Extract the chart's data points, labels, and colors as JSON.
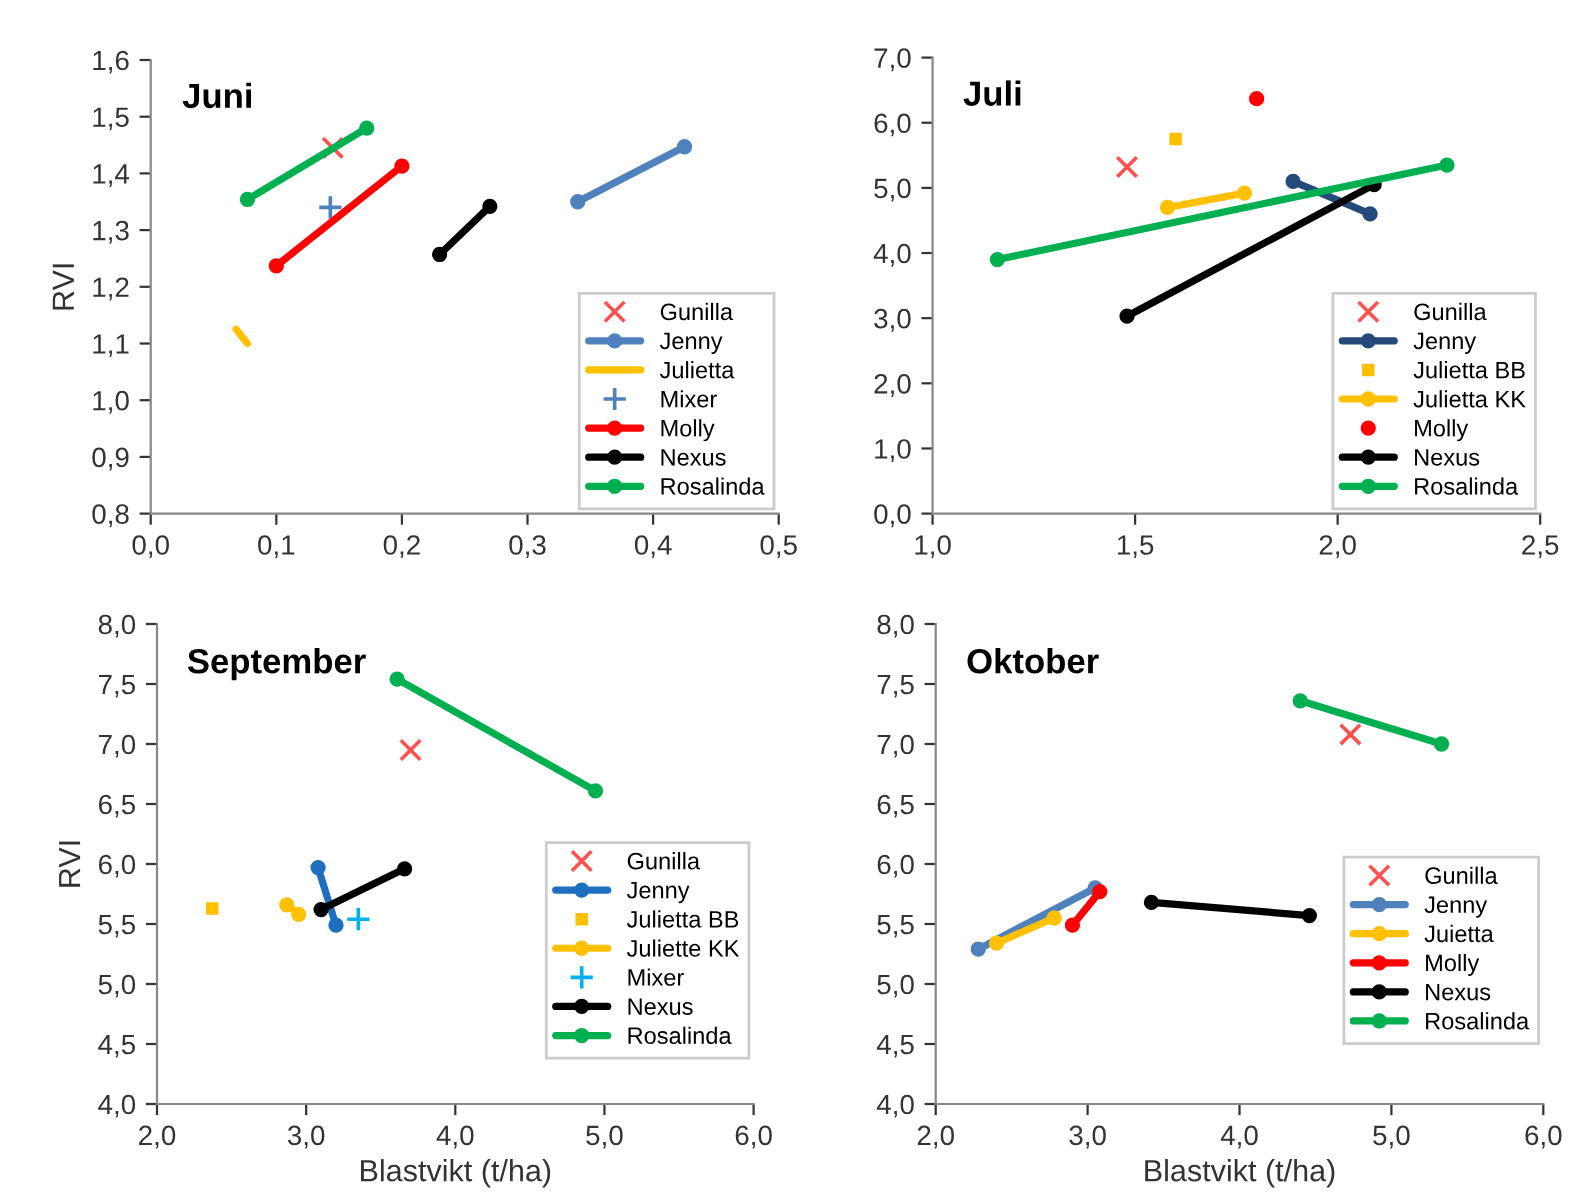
{
  "chart_data": [
    {
      "type": "line",
      "title": "Juni",
      "ylabel": "RVI",
      "xlim": [
        0,
        0.5
      ],
      "ylim": [
        0.8,
        1.6
      ],
      "xticks": [
        {
          "value": 0,
          "label": "0,0"
        },
        {
          "value": 0.1,
          "label": "0,1"
        },
        {
          "value": 0.2,
          "label": "0,2"
        },
        {
          "value": 0.3,
          "label": "0,3"
        },
        {
          "value": 0.4,
          "label": "0,4"
        },
        {
          "value": 0.5,
          "label": "0,5"
        }
      ],
      "yticks": [
        {
          "value": 0.8,
          "label": "0,8"
        },
        {
          "value": 0.9,
          "label": "0,9"
        },
        {
          "value": 1.0,
          "label": "1,0"
        },
        {
          "value": 1.1,
          "label": "1,1"
        },
        {
          "value": 1.2,
          "label": "1,2"
        },
        {
          "value": 1.3,
          "label": "1,3"
        },
        {
          "value": 1.4,
          "label": "1,4"
        },
        {
          "value": 1.5,
          "label": "1,5"
        },
        {
          "value": 1.6,
          "label": "1,6"
        }
      ],
      "grid": false,
      "legend": "bottom right",
      "series": [
        {
          "name": "Gunilla",
          "type": "scatter",
          "marker": "cross",
          "color": "#ff5050",
          "x": [
            0.145
          ],
          "values": [
            1.445
          ]
        },
        {
          "name": "Jenny",
          "marker": "circle",
          "color": "#4f81bd",
          "x": [
            0.34,
            0.425
          ],
          "values": [
            1.35,
            1.447
          ]
        },
        {
          "name": "Julietta",
          "marker": "none",
          "color": "#ffc000",
          "x": [
            0.068,
            0.077
          ],
          "values": [
            1.125,
            1.1
          ]
        },
        {
          "name": "Mixer",
          "type": "scatter",
          "marker": "plus",
          "color": "#4f81bd",
          "x": [
            0.143
          ],
          "values": [
            1.34
          ]
        },
        {
          "name": "Molly",
          "marker": "circle",
          "color": "#ff0000",
          "x": [
            0.1,
            0.2
          ],
          "values": [
            1.237,
            1.413
          ]
        },
        {
          "name": "Nexus",
          "marker": "circle",
          "color": "#000000",
          "x": [
            0.23,
            0.27
          ],
          "values": [
            1.257,
            1.342
          ]
        },
        {
          "name": "Rosalinda",
          "marker": "circle",
          "color": "#00b050",
          "x": [
            0.077,
            0.172
          ],
          "values": [
            1.354,
            1.48
          ]
        }
      ]
    },
    {
      "type": "line",
      "title": "Juli",
      "xlim": [
        1.0,
        2.5
      ],
      "ylim": [
        0,
        7
      ],
      "xticks": [
        {
          "value": 1.0,
          "label": "1,0"
        },
        {
          "value": 1.5,
          "label": "1,5"
        },
        {
          "value": 2.0,
          "label": "2,0"
        },
        {
          "value": 2.5,
          "label": "2,5"
        }
      ],
      "yticks": [
        {
          "value": 0,
          "label": "0,0"
        },
        {
          "value": 1,
          "label": "1,0"
        },
        {
          "value": 2,
          "label": "2,0"
        },
        {
          "value": 3,
          "label": "3,0"
        },
        {
          "value": 4,
          "label": "4,0"
        },
        {
          "value": 5,
          "label": "5,0"
        },
        {
          "value": 6,
          "label": "6,0"
        },
        {
          "value": 7,
          "label": "7,0"
        }
      ],
      "grid": false,
      "legend": "bottom right",
      "series": [
        {
          "name": "Gunilla",
          "type": "scatter",
          "marker": "cross",
          "color": "#ff5050",
          "x": [
            1.48
          ],
          "values": [
            5.32
          ]
        },
        {
          "name": "Jenny",
          "marker": "circle",
          "color": "#244a7c",
          "x": [
            1.89,
            2.08
          ],
          "values": [
            5.1,
            4.6
          ]
        },
        {
          "name": "Julietta BB",
          "type": "scatter",
          "marker": "square",
          "color": "#ffc000",
          "x": [
            1.6
          ],
          "values": [
            5.75
          ]
        },
        {
          "name": "Julietta KK",
          "marker": "circle",
          "color": "#ffc000",
          "x": [
            1.58,
            1.77
          ],
          "values": [
            4.7,
            4.92
          ]
        },
        {
          "name": "Molly",
          "type": "scatter",
          "marker": "circle",
          "color": "#ff0000",
          "x": [
            1.8
          ],
          "values": [
            6.37
          ]
        },
        {
          "name": "Nexus",
          "marker": "circle",
          "color": "#000000",
          "x": [
            1.48,
            2.09
          ],
          "values": [
            3.03,
            5.05
          ]
        },
        {
          "name": "Rosalinda",
          "marker": "circle",
          "color": "#00b050",
          "x": [
            1.16,
            2.27
          ],
          "values": [
            3.9,
            5.35
          ]
        }
      ]
    },
    {
      "type": "line",
      "title": "September",
      "xlabel": "Blastvikt (t/ha)",
      "ylabel": "RVI",
      "xlim": [
        2,
        6
      ],
      "ylim": [
        4,
        8
      ],
      "xticks": [
        {
          "value": 2,
          "label": "2,0"
        },
        {
          "value": 3,
          "label": "3,0"
        },
        {
          "value": 4,
          "label": "4,0"
        },
        {
          "value": 5,
          "label": "5,0"
        },
        {
          "value": 6,
          "label": "6,0"
        }
      ],
      "yticks": [
        {
          "value": 4,
          "label": "4,0"
        },
        {
          "value": 4.5,
          "label": "4,5"
        },
        {
          "value": 5,
          "label": "5,0"
        },
        {
          "value": 5.5,
          "label": "5,5"
        },
        {
          "value": 6,
          "label": "6,0"
        },
        {
          "value": 6.5,
          "label": "6,5"
        },
        {
          "value": 7,
          "label": "7,0"
        },
        {
          "value": 7.5,
          "label": "7,5"
        },
        {
          "value": 8,
          "label": "8,0"
        }
      ],
      "grid": false,
      "legend": "right",
      "series": [
        {
          "name": "Gunilla",
          "type": "scatter",
          "marker": "cross",
          "color": "#ff5050",
          "x": [
            3.7
          ],
          "values": [
            6.95
          ]
        },
        {
          "name": "Jenny",
          "marker": "circle",
          "color": "#1f6fbf",
          "x": [
            3.08,
            3.2
          ],
          "values": [
            5.97,
            5.49
          ]
        },
        {
          "name": "Julietta BB",
          "type": "scatter",
          "marker": "square",
          "color": "#ffc000",
          "x": [
            2.37
          ],
          "values": [
            5.63
          ]
        },
        {
          "name": "Juliette KK",
          "marker": "circle",
          "color": "#ffc000",
          "x": [
            2.87,
            2.95
          ],
          "values": [
            5.66,
            5.58
          ]
        },
        {
          "name": "Mixer",
          "type": "scatter",
          "marker": "plus",
          "color": "#00b0f0",
          "x": [
            3.35
          ],
          "values": [
            5.54
          ]
        },
        {
          "name": "Nexus",
          "marker": "circle",
          "color": "#000000",
          "x": [
            3.1,
            3.66
          ],
          "values": [
            5.62,
            5.96
          ]
        },
        {
          "name": "Rosalinda",
          "marker": "circle",
          "color": "#00b050",
          "x": [
            3.61,
            4.94
          ],
          "values": [
            7.54,
            6.61
          ]
        }
      ]
    },
    {
      "type": "line",
      "title": "Oktober",
      "xlabel": "Blastvikt (t/ha)",
      "xlim": [
        2,
        6
      ],
      "ylim": [
        4,
        8
      ],
      "xticks": [
        {
          "value": 2,
          "label": "2,0"
        },
        {
          "value": 3,
          "label": "3,0"
        },
        {
          "value": 4,
          "label": "4,0"
        },
        {
          "value": 5,
          "label": "5,0"
        },
        {
          "value": 6,
          "label": "6,0"
        }
      ],
      "yticks": [
        {
          "value": 4,
          "label": "4,0"
        },
        {
          "value": 4.5,
          "label": "4,5"
        },
        {
          "value": 5,
          "label": "5,0"
        },
        {
          "value": 5.5,
          "label": "5,5"
        },
        {
          "value": 6,
          "label": "6,0"
        },
        {
          "value": 6.5,
          "label": "6,5"
        },
        {
          "value": 7,
          "label": "7,0"
        },
        {
          "value": 7.5,
          "label": "7,5"
        },
        {
          "value": 8,
          "label": "8,0"
        }
      ],
      "grid": false,
      "legend": "right",
      "series": [
        {
          "name": "Gunilla",
          "type": "scatter",
          "marker": "cross",
          "color": "#ff5050",
          "x": [
            4.73
          ],
          "values": [
            7.08
          ]
        },
        {
          "name": "Jenny",
          "marker": "circle",
          "color": "#4f81bd",
          "x": [
            2.28,
            3.05
          ],
          "values": [
            5.29,
            5.8
          ]
        },
        {
          "name": "Juietta",
          "marker": "circle",
          "color": "#ffc000",
          "x": [
            2.4,
            2.78
          ],
          "values": [
            5.34,
            5.55
          ]
        },
        {
          "name": "Molly",
          "marker": "circle",
          "color": "#ff0000",
          "x": [
            2.9,
            3.08
          ],
          "values": [
            5.49,
            5.77
          ]
        },
        {
          "name": "Nexus",
          "marker": "circle",
          "color": "#000000",
          "x": [
            3.42,
            4.46
          ],
          "values": [
            5.68,
            5.57
          ]
        },
        {
          "name": "Rosalinda",
          "marker": "circle",
          "color": "#00b050",
          "x": [
            4.4,
            5.33
          ],
          "values": [
            7.36,
            7.0
          ]
        }
      ]
    }
  ]
}
